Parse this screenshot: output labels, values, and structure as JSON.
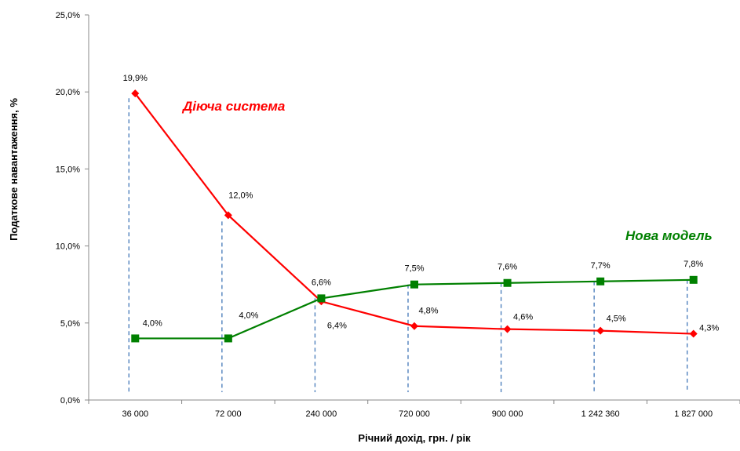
{
  "chart_data": {
    "type": "line",
    "categories": [
      "36 000",
      "72 000",
      "240 000",
      "720 000",
      "900 000",
      "1 242 360",
      "1 827 000"
    ],
    "series": [
      {
        "name": "Діюча система",
        "color": "#ff0000",
        "marker": "diamond",
        "values": [
          19.9,
          12.0,
          6.4,
          4.8,
          4.6,
          4.5,
          4.3
        ],
        "labels": [
          "19,9%",
          "12,0%",
          "6,4%",
          "4,8%",
          "4,6%",
          "4,5%",
          "4,3%"
        ]
      },
      {
        "name": "Нова модель",
        "color": "#008000",
        "marker": "square",
        "values": [
          4.0,
          4.0,
          6.6,
          7.5,
          7.6,
          7.7,
          7.8
        ],
        "labels": [
          "4,0%",
          "4,0%",
          "6,6%",
          "7,5%",
          "7,6%",
          "7,7%",
          "7,8%"
        ]
      }
    ],
    "xlabel": "Річний дохід, грн. / рік",
    "ylabel": "Податкове навантаження, %",
    "ylim": [
      0,
      25
    ],
    "yticks": [
      0,
      5,
      10,
      15,
      20,
      25
    ],
    "ytick_labels": [
      "0,0%",
      "5,0%",
      "10,0%",
      "15,0%",
      "20,0%",
      "25,0%"
    ],
    "drop_lines": true,
    "drop_line_color": "#4f81bd",
    "grid": false,
    "legend": "none"
  }
}
